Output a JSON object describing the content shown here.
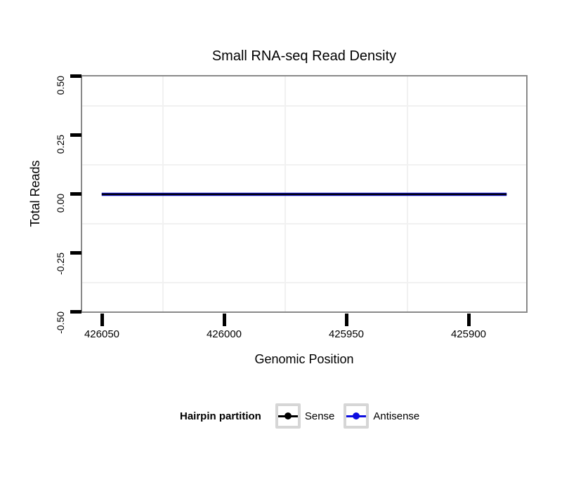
{
  "chart": {
    "title": "Small RNA-seq Read Density",
    "y_axis": {
      "label": "Total Reads",
      "ticks": [
        "0.50",
        "0.25",
        "0.00",
        "-0.25",
        "-0.50"
      ]
    },
    "x_axis": {
      "label": "Genomic Position",
      "ticks": [
        "426050",
        "426000",
        "425950",
        "425900"
      ]
    },
    "legend": {
      "title": "Hairpin partition",
      "items": [
        {
          "label": "Sense",
          "color": "#000000"
        },
        {
          "label": "Antisense",
          "color": "#0d0de0"
        }
      ]
    }
  },
  "chart_data": {
    "type": "line",
    "title": "Small RNA-seq Read Density",
    "xlabel": "Genomic Position",
    "ylabel": "Total Reads",
    "x_axis_reversed": true,
    "xlim": [
      426058,
      425876
    ],
    "ylim": [
      -0.5,
      0.5
    ],
    "x_ticks": [
      426050,
      426000,
      425950,
      425900
    ],
    "y_ticks": [
      0.5,
      0.25,
      0.0,
      -0.25,
      -0.5
    ],
    "grid": "minor gridlines only, very faint",
    "legend_position": "bottom",
    "legend_title": "Hairpin partition",
    "series": [
      {
        "name": "Antisense",
        "color": "#0d0de0",
        "x_start": 426050,
        "x_end": 425884,
        "constant_y": 0,
        "stroke_px": 4.5
      },
      {
        "name": "Sense",
        "color": "#000000",
        "x_start": 426050,
        "x_end": 425884,
        "constant_y": 0,
        "stroke_px": 2.5
      }
    ],
    "colors": {
      "panel_border": "#898989",
      "gridline": "#f1f1f1",
      "axis_ticks": "#000000",
      "legend_key_border": "#d6d6d6",
      "background": "#ffffff"
    }
  }
}
